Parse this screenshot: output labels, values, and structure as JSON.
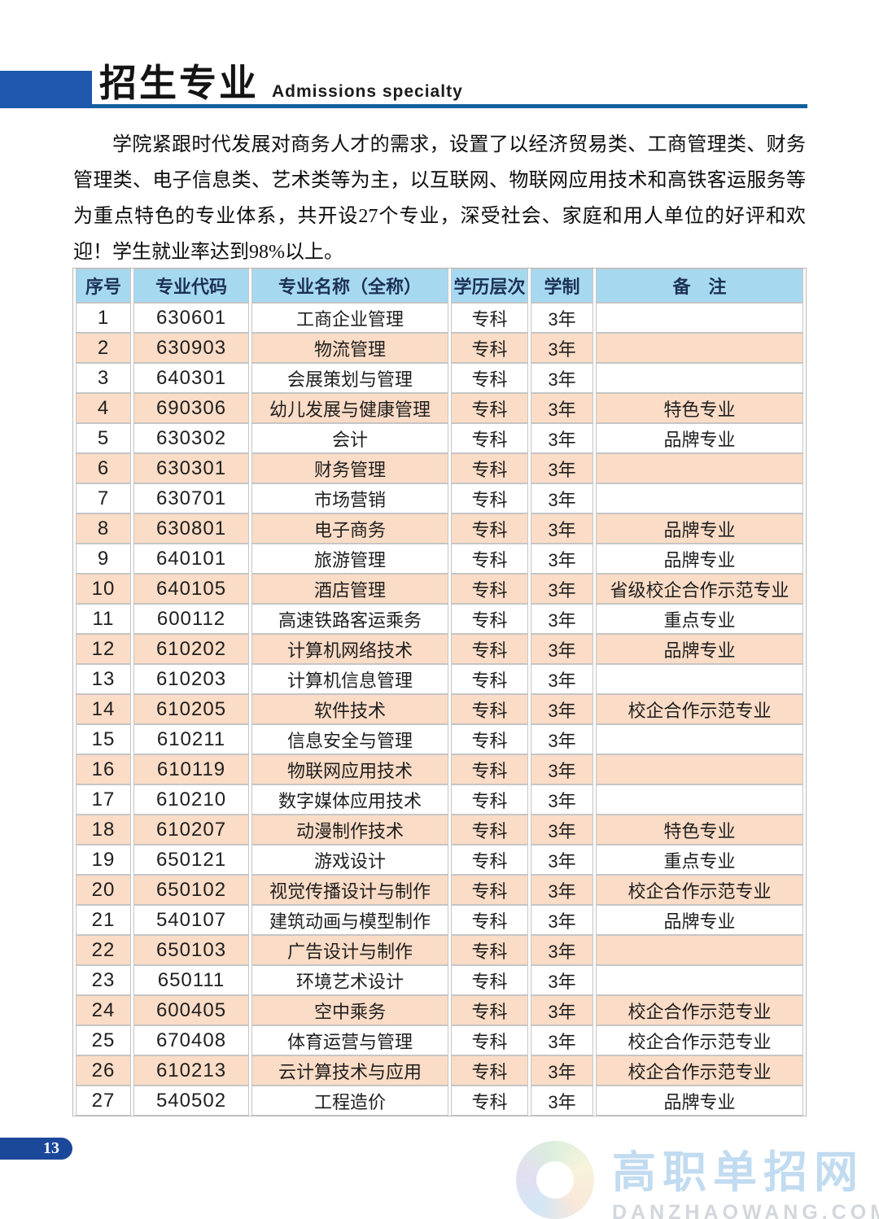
{
  "header": {
    "title_zh": "招生专业",
    "title_en": "Admissions specialty"
  },
  "intro": {
    "text": "学院紧跟时代发展对商务人才的需求，设置了以经济贸易类、工商管理类、财务管理类、电子信息类、艺术类等为主，以互联网、物联网应用技术和高铁客运服务等为重点特色的专业体系，共开设27个专业，深受社会、家庭和用人单位的好评和欢迎！学生就业率达到98%以上。"
  },
  "table": {
    "headers": [
      "序号",
      "专业代码",
      "专业名称（全称）",
      "学历层次",
      "学制",
      "备　注"
    ],
    "rows": [
      [
        "1",
        "630601",
        "工商企业管理",
        "专科",
        "3年",
        ""
      ],
      [
        "2",
        "630903",
        "物流管理",
        "专科",
        "3年",
        ""
      ],
      [
        "3",
        "640301",
        "会展策划与管理",
        "专科",
        "3年",
        ""
      ],
      [
        "4",
        "690306",
        "幼儿发展与健康管理",
        "专科",
        "3年",
        "特色专业"
      ],
      [
        "5",
        "630302",
        "会计",
        "专科",
        "3年",
        "品牌专业"
      ],
      [
        "6",
        "630301",
        "财务管理",
        "专科",
        "3年",
        ""
      ],
      [
        "7",
        "630701",
        "市场营销",
        "专科",
        "3年",
        ""
      ],
      [
        "8",
        "630801",
        "电子商务",
        "专科",
        "3年",
        "品牌专业"
      ],
      [
        "9",
        "640101",
        "旅游管理",
        "专科",
        "3年",
        "品牌专业"
      ],
      [
        "10",
        "640105",
        "酒店管理",
        "专科",
        "3年",
        "省级校企合作示范专业"
      ],
      [
        "11",
        "600112",
        "高速铁路客运乘务",
        "专科",
        "3年",
        "重点专业"
      ],
      [
        "12",
        "610202",
        "计算机网络技术",
        "专科",
        "3年",
        "品牌专业"
      ],
      [
        "13",
        "610203",
        "计算机信息管理",
        "专科",
        "3年",
        ""
      ],
      [
        "14",
        "610205",
        "软件技术",
        "专科",
        "3年",
        "校企合作示范专业"
      ],
      [
        "15",
        "610211",
        "信息安全与管理",
        "专科",
        "3年",
        ""
      ],
      [
        "16",
        "610119",
        "物联网应用技术",
        "专科",
        "3年",
        ""
      ],
      [
        "17",
        "610210",
        "数字媒体应用技术",
        "专科",
        "3年",
        ""
      ],
      [
        "18",
        "610207",
        "动漫制作技术",
        "专科",
        "3年",
        "特色专业"
      ],
      [
        "19",
        "650121",
        "游戏设计",
        "专科",
        "3年",
        "重点专业"
      ],
      [
        "20",
        "650102",
        "视觉传播设计与制作",
        "专科",
        "3年",
        "校企合作示范专业"
      ],
      [
        "21",
        "540107",
        "建筑动画与模型制作",
        "专科",
        "3年",
        "品牌专业"
      ],
      [
        "22",
        "650103",
        "广告设计与制作",
        "专科",
        "3年",
        ""
      ],
      [
        "23",
        "650111",
        "环境艺术设计",
        "专科",
        "3年",
        ""
      ],
      [
        "24",
        "600405",
        "空中乘务",
        "专科",
        "3年",
        "校企合作示范专业"
      ],
      [
        "25",
        "670408",
        "体育运营与管理",
        "专科",
        "3年",
        "校企合作示范专业"
      ],
      [
        "26",
        "610213",
        "云计算技术与应用",
        "专科",
        "3年",
        "校企合作示范专业"
      ],
      [
        "27",
        "540502",
        "工程造价",
        "专科",
        "3年",
        "品牌专业"
      ]
    ],
    "colors": {
      "header_bg": "#a6d9f0",
      "header_text": "#1d3157",
      "row_alt_bg": "#fbdcc6",
      "grid": "#c5c5c5"
    }
  },
  "page": {
    "number": "13"
  },
  "watermark": {
    "site_zh": "高职单招网",
    "site_en": "DANZHAOWANG.COM"
  },
  "colors": {
    "accent_block_blue": "#1e57ab",
    "rule_blue": "#12609f",
    "page_pill_blue": "#1c4899"
  }
}
